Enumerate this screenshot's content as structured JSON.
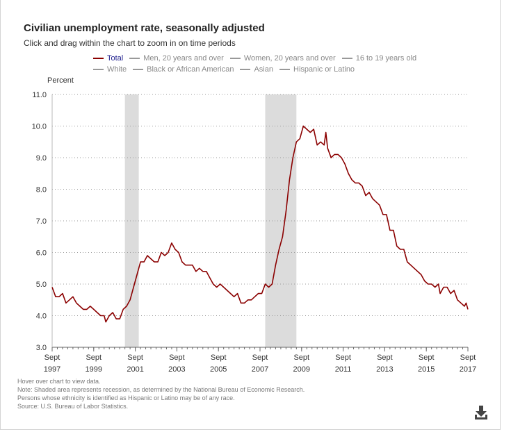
{
  "title": "Civilian unemployment rate, seasonally adjusted",
  "subtitle": "Click and drag within the chart to zoom in on time periods",
  "legend_rows": [
    [
      {
        "label": "Total",
        "active": true
      },
      {
        "label": "Men, 20 years and over",
        "active": false
      },
      {
        "label": "Women, 20 years and over",
        "active": false
      },
      {
        "label": "16 to 19 years old",
        "active": false
      }
    ],
    [
      {
        "label": "White",
        "active": false
      },
      {
        "label": "Black or African American",
        "active": false
      },
      {
        "label": "Asian",
        "active": false
      },
      {
        "label": "Hispanic or Latino",
        "active": false
      }
    ]
  ],
  "notes": [
    "Hover over chart to view data.",
    "Note: Shaded area represents recession, as determined by the National Bureau of Economic Research.",
    "Persons whose ethnicity is identified as Hispanic or Latino may be of any race.",
    "Source: U.S. Bureau of Labor Statistics."
  ],
  "colors": {
    "series": "#8b0000",
    "recession": "#dcdcdc",
    "active_legend_text": "#1c1c8c"
  },
  "icons": {
    "download": "download-icon"
  },
  "chart_data": {
    "type": "line",
    "ylabel": "Percent",
    "xlabel": "",
    "ylim": [
      3.0,
      11.0
    ],
    "yticks": [
      "3.0",
      "4.0",
      "5.0",
      "6.0",
      "7.0",
      "8.0",
      "9.0",
      "10.0",
      "11.0"
    ],
    "xticks": [
      {
        "month": "Sept",
        "year": "1997"
      },
      {
        "month": "Sept",
        "year": "1999"
      },
      {
        "month": "Sept",
        "year": "2001"
      },
      {
        "month": "Sept",
        "year": "2003"
      },
      {
        "month": "Sept",
        "year": "2005"
      },
      {
        "month": "Sept",
        "year": "2007"
      },
      {
        "month": "Sept",
        "year": "2009"
      },
      {
        "month": "Sept",
        "year": "2011"
      },
      {
        "month": "Sept",
        "year": "2013"
      },
      {
        "month": "Sept",
        "year": "2015"
      },
      {
        "month": "Sept",
        "year": "2017"
      }
    ],
    "xlim": [
      "1997-09",
      "2017-09"
    ],
    "grid": true,
    "legend_placement": "top",
    "recessions": [
      {
        "start": "2001-03",
        "end": "2001-11"
      },
      {
        "start": "2007-12",
        "end": "2009-06"
      }
    ],
    "series": [
      {
        "name": "Total",
        "points": [
          [
            "1997-09",
            4.9
          ],
          [
            "1997-11",
            4.6
          ],
          [
            "1998-01",
            4.6
          ],
          [
            "1998-03",
            4.7
          ],
          [
            "1998-05",
            4.4
          ],
          [
            "1998-07",
            4.5
          ],
          [
            "1998-09",
            4.6
          ],
          [
            "1998-11",
            4.4
          ],
          [
            "1999-01",
            4.3
          ],
          [
            "1999-03",
            4.2
          ],
          [
            "1999-05",
            4.2
          ],
          [
            "1999-07",
            4.3
          ],
          [
            "1999-09",
            4.2
          ],
          [
            "1999-11",
            4.1
          ],
          [
            "2000-01",
            4.0
          ],
          [
            "2000-03",
            4.0
          ],
          [
            "2000-04",
            3.8
          ],
          [
            "2000-06",
            4.0
          ],
          [
            "2000-08",
            4.1
          ],
          [
            "2000-10",
            3.9
          ],
          [
            "2000-12",
            3.9
          ],
          [
            "2001-02",
            4.2
          ],
          [
            "2001-04",
            4.3
          ],
          [
            "2001-06",
            4.5
          ],
          [
            "2001-08",
            4.9
          ],
          [
            "2001-10",
            5.3
          ],
          [
            "2001-12",
            5.7
          ],
          [
            "2002-02",
            5.7
          ],
          [
            "2002-04",
            5.9
          ],
          [
            "2002-06",
            5.8
          ],
          [
            "2002-08",
            5.7
          ],
          [
            "2002-10",
            5.7
          ],
          [
            "2002-12",
            6.0
          ],
          [
            "2003-02",
            5.9
          ],
          [
            "2003-04",
            6.0
          ],
          [
            "2003-06",
            6.3
          ],
          [
            "2003-08",
            6.1
          ],
          [
            "2003-10",
            6.0
          ],
          [
            "2003-12",
            5.7
          ],
          [
            "2004-02",
            5.6
          ],
          [
            "2004-04",
            5.6
          ],
          [
            "2004-06",
            5.6
          ],
          [
            "2004-08",
            5.4
          ],
          [
            "2004-10",
            5.5
          ],
          [
            "2004-12",
            5.4
          ],
          [
            "2005-02",
            5.4
          ],
          [
            "2005-04",
            5.2
          ],
          [
            "2005-06",
            5.0
          ],
          [
            "2005-08",
            4.9
          ],
          [
            "2005-10",
            5.0
          ],
          [
            "2005-12",
            4.9
          ],
          [
            "2006-02",
            4.8
          ],
          [
            "2006-04",
            4.7
          ],
          [
            "2006-06",
            4.6
          ],
          [
            "2006-08",
            4.7
          ],
          [
            "2006-10",
            4.4
          ],
          [
            "2006-12",
            4.4
          ],
          [
            "2007-02",
            4.5
          ],
          [
            "2007-04",
            4.5
          ],
          [
            "2007-06",
            4.6
          ],
          [
            "2007-08",
            4.7
          ],
          [
            "2007-10",
            4.7
          ],
          [
            "2007-12",
            5.0
          ],
          [
            "2008-02",
            4.9
          ],
          [
            "2008-04",
            5.0
          ],
          [
            "2008-06",
            5.6
          ],
          [
            "2008-08",
            6.1
          ],
          [
            "2008-10",
            6.5
          ],
          [
            "2008-12",
            7.3
          ],
          [
            "2009-02",
            8.3
          ],
          [
            "2009-04",
            9.0
          ],
          [
            "2009-06",
            9.5
          ],
          [
            "2009-08",
            9.6
          ],
          [
            "2009-10",
            10.0
          ],
          [
            "2009-12",
            9.9
          ],
          [
            "2010-02",
            9.8
          ],
          [
            "2010-04",
            9.9
          ],
          [
            "2010-06",
            9.4
          ],
          [
            "2010-08",
            9.5
          ],
          [
            "2010-10",
            9.4
          ],
          [
            "2010-11",
            9.8
          ],
          [
            "2010-12",
            9.3
          ],
          [
            "2011-02",
            9.0
          ],
          [
            "2011-04",
            9.1
          ],
          [
            "2011-06",
            9.1
          ],
          [
            "2011-08",
            9.0
          ],
          [
            "2011-10",
            8.8
          ],
          [
            "2011-12",
            8.5
          ],
          [
            "2012-02",
            8.3
          ],
          [
            "2012-04",
            8.2
          ],
          [
            "2012-06",
            8.2
          ],
          [
            "2012-08",
            8.1
          ],
          [
            "2012-10",
            7.8
          ],
          [
            "2012-12",
            7.9
          ],
          [
            "2013-02",
            7.7
          ],
          [
            "2013-04",
            7.6
          ],
          [
            "2013-06",
            7.5
          ],
          [
            "2013-08",
            7.2
          ],
          [
            "2013-10",
            7.2
          ],
          [
            "2013-12",
            6.7
          ],
          [
            "2014-02",
            6.7
          ],
          [
            "2014-04",
            6.2
          ],
          [
            "2014-06",
            6.1
          ],
          [
            "2014-08",
            6.1
          ],
          [
            "2014-10",
            5.7
          ],
          [
            "2014-12",
            5.6
          ],
          [
            "2015-02",
            5.5
          ],
          [
            "2015-04",
            5.4
          ],
          [
            "2015-06",
            5.3
          ],
          [
            "2015-08",
            5.1
          ],
          [
            "2015-10",
            5.0
          ],
          [
            "2015-12",
            5.0
          ],
          [
            "2016-02",
            4.9
          ],
          [
            "2016-04",
            5.0
          ],
          [
            "2016-05",
            4.7
          ],
          [
            "2016-07",
            4.9
          ],
          [
            "2016-09",
            4.9
          ],
          [
            "2016-11",
            4.7
          ],
          [
            "2017-01",
            4.8
          ],
          [
            "2017-03",
            4.5
          ],
          [
            "2017-05",
            4.4
          ],
          [
            "2017-07",
            4.3
          ],
          [
            "2017-08",
            4.4
          ],
          [
            "2017-09",
            4.2
          ]
        ]
      }
    ]
  }
}
